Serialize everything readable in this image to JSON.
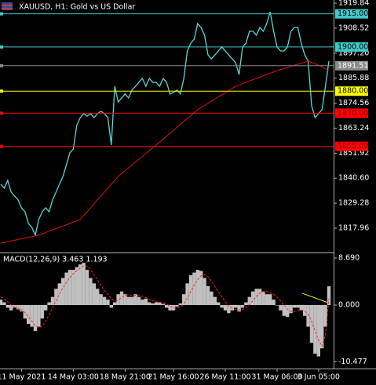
{
  "chart_data": [
    {
      "type": "line",
      "title": "XAUUSD, H1:  Gold vs US Dollar",
      "series": [
        {
          "color": "#5cd6d6",
          "values": [
            1837.9,
            1836.1,
            1839.6,
            1834.3,
            1832.5,
            1830.8,
            1827.2,
            1825.4,
            1820.1,
            1818.3,
            1814.8,
            1821.9,
            1825.4,
            1827.2,
            1825.4,
            1830.8,
            1834.3,
            1837.9,
            1841.4,
            1846.7,
            1852.1,
            1853.8,
            1864.5,
            1868.0,
            1869.8,
            1868.7,
            1869.8,
            1868.0,
            1869.8,
            1870.9,
            1869.8,
            1868.0,
            1855.6,
            1882.2,
            1875.1,
            1876.9,
            1878.7,
            1876.9,
            1880.5,
            1882.2,
            1884.0,
            1885.8,
            1882.2,
            1885.8,
            1884.0,
            1884.0,
            1882.2,
            1885.8,
            1884.0,
            1878.7,
            1879.4,
            1880.5,
            1878.7,
            1885.8,
            1898.2,
            1901.7,
            1903.5,
            1910.6,
            1908.8,
            1905.3,
            1896.4,
            1894.6,
            1896.4,
            1898.2,
            1900.0,
            1898.2,
            1896.4,
            1894.6,
            1892.9,
            1887.5,
            1900.0,
            1901.7,
            1907.1,
            1907.1,
            1905.3,
            1908.8,
            1907.1,
            1910.6,
            1915.9,
            1907.1,
            1900.0,
            1898.2,
            1898.2,
            1900.0,
            1907.1,
            1908.8,
            1908.8,
            1901.7,
            1896.4,
            1893.6,
            1873.4,
            1868.0,
            1869.8,
            1871.6,
            1882.2,
            1893.6
          ]
        },
        {
          "color": "#e01010",
          "values": [
            1811.2,
            1811.5,
            1811.9,
            1812.2,
            1812.5,
            1812.8,
            1813.2,
            1813.5,
            1813.8,
            1814.1,
            1814.5,
            1814.8,
            1815.4,
            1816.0,
            1816.6,
            1817.2,
            1817.8,
            1818.4,
            1818.9,
            1819.5,
            1820.1,
            1820.7,
            1821.3,
            1821.9,
            1823.7,
            1825.4,
            1827.2,
            1829.0,
            1830.8,
            1832.5,
            1834.3,
            1836.1,
            1837.9,
            1839.6,
            1841.4,
            1842.7,
            1844.0,
            1845.3,
            1846.6,
            1847.9,
            1849.1,
            1850.4,
            1851.7,
            1853.0,
            1854.3,
            1855.6,
            1856.9,
            1858.3,
            1859.6,
            1860.9,
            1862.3,
            1863.6,
            1864.9,
            1866.3,
            1867.6,
            1868.9,
            1870.3,
            1871.6,
            1872.6,
            1873.5,
            1874.5,
            1875.5,
            1876.4,
            1877.4,
            1878.3,
            1879.3,
            1880.3,
            1881.2,
            1882.2,
            1882.8,
            1883.4,
            1884.0,
            1884.6,
            1885.2,
            1885.8,
            1886.3,
            1886.9,
            1887.5,
            1888.1,
            1888.7,
            1889.3,
            1889.8,
            1890.3,
            1890.7,
            1891.2,
            1891.7,
            1892.2,
            1892.6,
            1893.1,
            1893.6,
            1893.0,
            1892.4,
            1891.7,
            1891.1,
            1890.2,
            1889.3
          ]
        }
      ],
      "ylim": [
        1806.96,
        1921.26
      ],
      "yticks": [
        {
          "value": 1919.84,
          "label": "1919.84"
        },
        {
          "value": 1908.52,
          "label": "1908.52"
        },
        {
          "value": 1897.2,
          "label": "1897.20"
        },
        {
          "value": 1885.88,
          "label": "1885.88"
        },
        {
          "value": 1874.56,
          "label": "1874.56"
        },
        {
          "value": 1863.24,
          "label": "1863.24"
        },
        {
          "value": 1851.92,
          "label": "1851.92"
        },
        {
          "value": 1840.6,
          "label": "1840.60"
        },
        {
          "value": 1829.28,
          "label": "1829.28"
        },
        {
          "value": 1817.96,
          "label": "1817.96"
        }
      ],
      "levels": [
        {
          "value": 1915,
          "label": "1915.00",
          "color": "#40c8c8",
          "text_color": "#000000"
        },
        {
          "value": 1900,
          "label": "1900.00",
          "color": "#40c8c8",
          "text_color": "#000000"
        },
        {
          "value": 1891.51,
          "label": "1891.51",
          "color": "#8a8a8a",
          "text_color": "#ffffff"
        },
        {
          "value": 1880,
          "label": "1880.00",
          "color": "#ffff00",
          "text_color": "#000000"
        },
        {
          "value": 1870,
          "label": "1870.00",
          "color": "#ff0000",
          "text_color": "#800000"
        },
        {
          "value": 1855,
          "label": "1855.00",
          "color": "#ff0000",
          "text_color": "#800000"
        }
      ]
    },
    {
      "type": "bar",
      "title": "MACD(12,26,9) 3.463 1.193",
      "categories": [
        null,
        null,
        null,
        null,
        null,
        null,
        "11 May 2021",
        null,
        null,
        null,
        null,
        null,
        null,
        null,
        null,
        null,
        null,
        null,
        null,
        null,
        null,
        "14 May 03:00",
        null,
        null,
        null,
        null,
        null,
        null,
        null,
        null,
        null,
        null,
        null,
        null,
        null,
        null,
        "18 May 21:00",
        null,
        null,
        null,
        null,
        null,
        null,
        null,
        null,
        null,
        null,
        null,
        null,
        null,
        "21 May 16:00",
        null,
        null,
        null,
        null,
        null,
        null,
        null,
        null,
        null,
        null,
        null,
        null,
        null,
        null,
        "26 May 11:00",
        null,
        null,
        null,
        null,
        null,
        null,
        null,
        null,
        null,
        null,
        null,
        null,
        null,
        null,
        "31 May 06:00",
        null,
        null,
        null,
        null,
        null,
        null,
        null,
        null,
        null,
        null,
        null,
        "3 Jun 05:00",
        null,
        null,
        null
      ],
      "series": [
        {
          "color": "#c0c0c0",
          "values": [
            1.0,
            0.5,
            -0.5,
            -1.0,
            -0.5,
            -0.8,
            -1.2,
            -2.5,
            -3.5,
            -4.0,
            -4.8,
            -4.0,
            -2.5,
            -1.0,
            0.5,
            1.5,
            3.0,
            4.0,
            5.0,
            6.0,
            6.5,
            6.5,
            7.0,
            7.5,
            7.8,
            6.5,
            5.0,
            4.0,
            3.0,
            2.0,
            1.5,
            1.0,
            -0.5,
            0.5,
            2.0,
            2.5,
            2.0,
            1.5,
            1.5,
            2.0,
            1.5,
            1.0,
            1.2,
            0.5,
            0.3,
            0.5,
            0.5,
            0.2,
            -0.5,
            -1.0,
            -1.0,
            -0.3,
            0.3,
            2.0,
            4.0,
            5.5,
            6.0,
            6.5,
            6.3,
            5.0,
            3.5,
            2.5,
            1.5,
            0.5,
            -0.5,
            -1.0,
            -1.5,
            -1.0,
            -0.5,
            -1.2,
            -0.5,
            0.5,
            1.5,
            2.5,
            3.0,
            3.0,
            2.5,
            2.0,
            2.0,
            1.0,
            0.0,
            -1.0,
            -2.0,
            -2.2,
            -1.5,
            -0.5,
            -0.5,
            -1.0,
            -2.0,
            -4.0,
            -7.0,
            -9.0,
            -9.5,
            -8.0,
            -4.0,
            3.463
          ]
        },
        {
          "type": "line",
          "color": "#ff2020",
          "values": [
            1.5,
            1.2,
            0.6,
            0.0,
            -0.4,
            -0.6,
            -0.9,
            -1.4,
            -2.2,
            -3.0,
            -3.8,
            -4.2,
            -3.9,
            -3.0,
            -1.8,
            -0.5,
            0.8,
            2.0,
            3.2,
            4.2,
            5.1,
            5.8,
            6.3,
            6.8,
            7.2,
            7.2,
            6.6,
            5.6,
            4.6,
            3.6,
            2.7,
            2.0,
            1.2,
            0.8,
            0.9,
            1.4,
            1.8,
            1.9,
            1.8,
            1.8,
            1.8,
            1.6,
            1.4,
            1.1,
            0.8,
            0.6,
            0.5,
            0.4,
            0.2,
            -0.2,
            -0.5,
            -0.6,
            -0.4,
            0.2,
            1.2,
            2.5,
            3.7,
            4.7,
            5.4,
            5.6,
            5.2,
            4.4,
            3.4,
            2.4,
            1.5,
            0.6,
            -0.2,
            -0.6,
            -0.8,
            -0.9,
            -0.8,
            -0.5,
            0.1,
            0.8,
            1.6,
            2.2,
            2.5,
            2.5,
            2.3,
            2.0,
            1.5,
            0.8,
            0.0,
            -0.8,
            -1.2,
            -1.2,
            -1.0,
            -0.9,
            -1.1,
            -1.7,
            -3.0,
            -4.8,
            -6.5,
            -7.6,
            -5.5,
            1.193
          ]
        }
      ],
      "ylim": [
        -11.74,
        9.565
      ],
      "yticks": [
        {
          "value": 8.69,
          "label": "8.690"
        },
        {
          "value": 0,
          "label": "0.000"
        },
        {
          "value": -10.477,
          "label": "-10.477"
        }
      ]
    }
  ]
}
